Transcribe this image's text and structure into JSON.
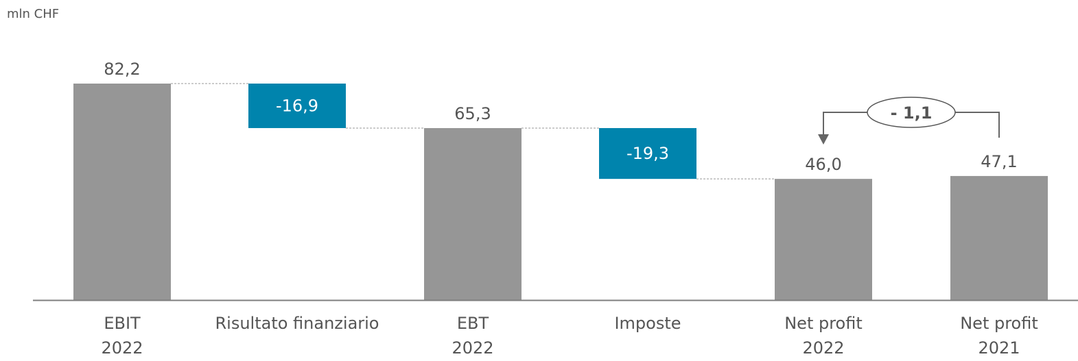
{
  "chart_data": {
    "type": "waterfall",
    "unit_label": "mln CHF",
    "categories": [
      [
        "EBIT",
        "2022"
      ],
      [
        "Risultato finanziario"
      ],
      [
        "EBT",
        "2022"
      ],
      [
        "Imposte"
      ],
      [
        "Net profit",
        "2022"
      ],
      [
        "Net profit",
        "2021"
      ]
    ],
    "steps": [
      {
        "kind": "total",
        "value": 82.2,
        "label": "82,2"
      },
      {
        "kind": "delta",
        "value": -16.9,
        "label": "-16,9"
      },
      {
        "kind": "total",
        "value": 65.3,
        "label": "65,3"
      },
      {
        "kind": "delta",
        "value": -19.3,
        "label": "-19,3"
      },
      {
        "kind": "total",
        "value": 46.0,
        "label": "46,0"
      },
      {
        "kind": "total",
        "value": 47.1,
        "label": "47,1"
      }
    ],
    "comparison": {
      "from_index": 5,
      "to_index": 4,
      "value": -1.1,
      "label": "- 1,1"
    },
    "ylim": [
      0,
      82.2
    ],
    "grid": false,
    "colors": {
      "total": "#969696",
      "delta": "#0084AD",
      "delta_text": "#ffffff",
      "text": "#555555",
      "axis": "#7f7f7f",
      "connector": "#999999"
    }
  }
}
